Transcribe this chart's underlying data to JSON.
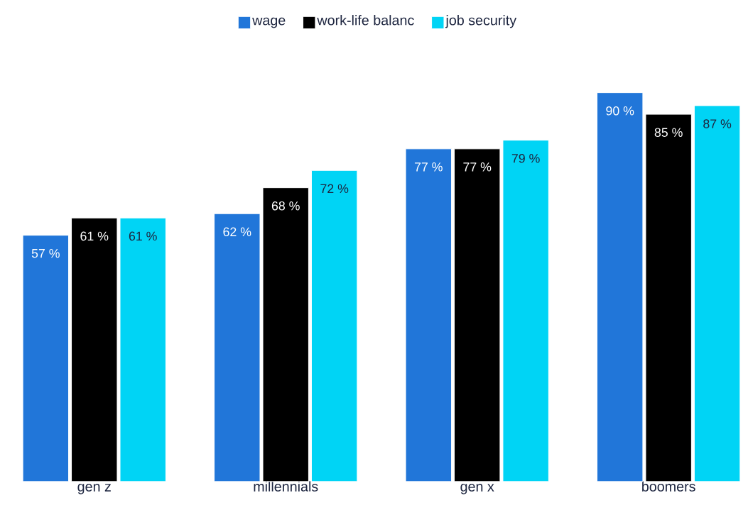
{
  "chart_data": {
    "type": "bar",
    "categories": [
      "gen z",
      "millennials",
      "gen x",
      "boomers"
    ],
    "series": [
      {
        "name": "wage",
        "color": "#2176d9",
        "values": [
          57,
          62,
          77,
          90
        ],
        "value_labels": [
          "57 %",
          "62 %",
          "77 %",
          "90 %"
        ]
      },
      {
        "name": "work-life balanc",
        "color": "#000000",
        "values": [
          61,
          68,
          77,
          85
        ],
        "value_labels": [
          "61 %",
          "68 %",
          "77 %",
          "85 %"
        ]
      },
      {
        "name": "job security",
        "color": "#00d4f5",
        "values": [
          61,
          72,
          79,
          87
        ],
        "value_labels": [
          "61 %",
          "72 %",
          "79 %",
          "87 %"
        ]
      }
    ],
    "legend": "top"
  }
}
